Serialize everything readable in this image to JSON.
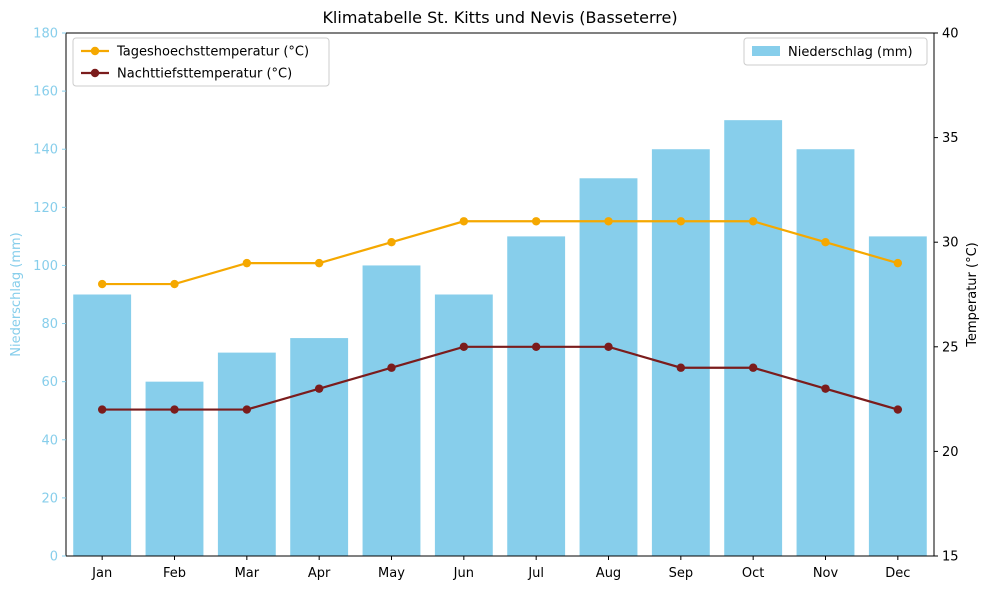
{
  "chart_data": {
    "type": "bar",
    "title": "Klimatabelle St. Kitts und Nevis (Basseterre)",
    "categories": [
      "Jan",
      "Feb",
      "Mar",
      "Apr",
      "May",
      "Jun",
      "Jul",
      "Aug",
      "Sep",
      "Oct",
      "Nov",
      "Dec"
    ],
    "bar_series": {
      "name": "Niederschlag (mm)",
      "values": [
        90,
        60,
        70,
        75,
        100,
        90,
        110,
        130,
        140,
        150,
        140,
        110
      ],
      "color": "#87CEEB"
    },
    "line_series": [
      {
        "name": "Tageshoechsttemperatur (°C)",
        "values": [
          28,
          28,
          29,
          29,
          30,
          31,
          31,
          31,
          31,
          31,
          30,
          29
        ],
        "color": "#F5A800"
      },
      {
        "name": "Nachttiefsttemperatur (°C)",
        "values": [
          22,
          22,
          22,
          23,
          24,
          25,
          25,
          25,
          24,
          24,
          23,
          22
        ],
        "color": "#7B1C1C"
      }
    ],
    "y_left": {
      "label": "Niederschlag (mm)",
      "range": [
        0,
        180
      ],
      "ticks": [
        0,
        20,
        40,
        60,
        80,
        100,
        120,
        140,
        160,
        180
      ],
      "color": "#87CEEB"
    },
    "y_right": {
      "label": "Temperatur (°C)",
      "range": [
        15,
        40
      ],
      "ticks": [
        15,
        20,
        25,
        30,
        35,
        40
      ],
      "color": "#000000"
    },
    "grid": false,
    "legend_lines_placement": "top-left",
    "legend_bars_placement": "top-right"
  }
}
